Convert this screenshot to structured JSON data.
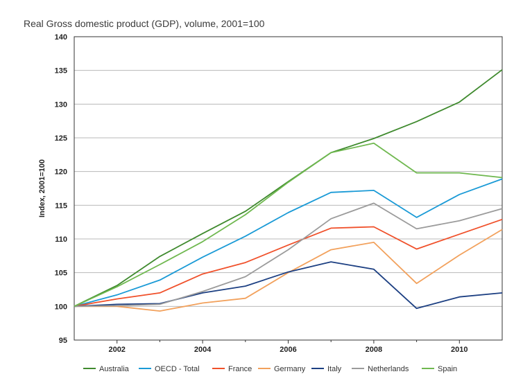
{
  "chart_data": {
    "type": "line",
    "title": "Real Gross domestic product (GDP), volume, 2001=100",
    "xlabel": "",
    "ylabel": "Index, 2001=100",
    "x": [
      2001,
      2002,
      2003,
      2004,
      2005,
      2006,
      2007,
      2008,
      2009,
      2010,
      2011
    ],
    "xticks": [
      "2002",
      "2004",
      "2006",
      "2008",
      "2010"
    ],
    "xtick_values": [
      2002,
      2004,
      2006,
      2008,
      2010
    ],
    "xlim": [
      2001,
      2011
    ],
    "ylim": [
      95,
      140
    ],
    "yticks": [
      95,
      100,
      105,
      110,
      115,
      120,
      125,
      130,
      135,
      140
    ],
    "grid": true,
    "legend_position": "bottom",
    "series": [
      {
        "name": "Australia",
        "color": "#3f8a2e",
        "values": [
          100,
          103.1,
          107.4,
          110.8,
          114.1,
          118.5,
          122.8,
          124.9,
          127.4,
          130.3,
          135.1
        ]
      },
      {
        "name": "OECD - Total",
        "color": "#1a9ad6",
        "values": [
          100,
          101.7,
          103.9,
          107.3,
          110.4,
          113.9,
          116.9,
          117.2,
          113.2,
          116.6,
          118.9
        ]
      },
      {
        "name": "France",
        "color": "#f0502a",
        "values": [
          100,
          101.1,
          102.0,
          104.8,
          106.5,
          109.1,
          111.6,
          111.8,
          108.5,
          110.7,
          112.9
        ]
      },
      {
        "name": "Germany",
        "color": "#f2a15c",
        "values": [
          100,
          100.0,
          99.3,
          100.5,
          101.2,
          105.0,
          108.4,
          109.5,
          103.4,
          107.6,
          111.4
        ]
      },
      {
        "name": "Italy",
        "color": "#1c3f82",
        "values": [
          100,
          100.3,
          100.4,
          102.0,
          103.0,
          105.1,
          106.6,
          105.5,
          99.7,
          101.4,
          102.0
        ]
      },
      {
        "name": "Netherlands",
        "color": "#9b9b9b",
        "values": [
          100,
          100.1,
          100.3,
          102.2,
          104.4,
          108.4,
          113.0,
          115.3,
          111.5,
          112.7,
          114.5
        ]
      },
      {
        "name": "Spain",
        "color": "#6fb84f",
        "values": [
          100,
          102.9,
          106.2,
          109.6,
          113.6,
          118.4,
          122.8,
          124.2,
          119.8,
          119.8,
          119.1
        ]
      }
    ]
  }
}
